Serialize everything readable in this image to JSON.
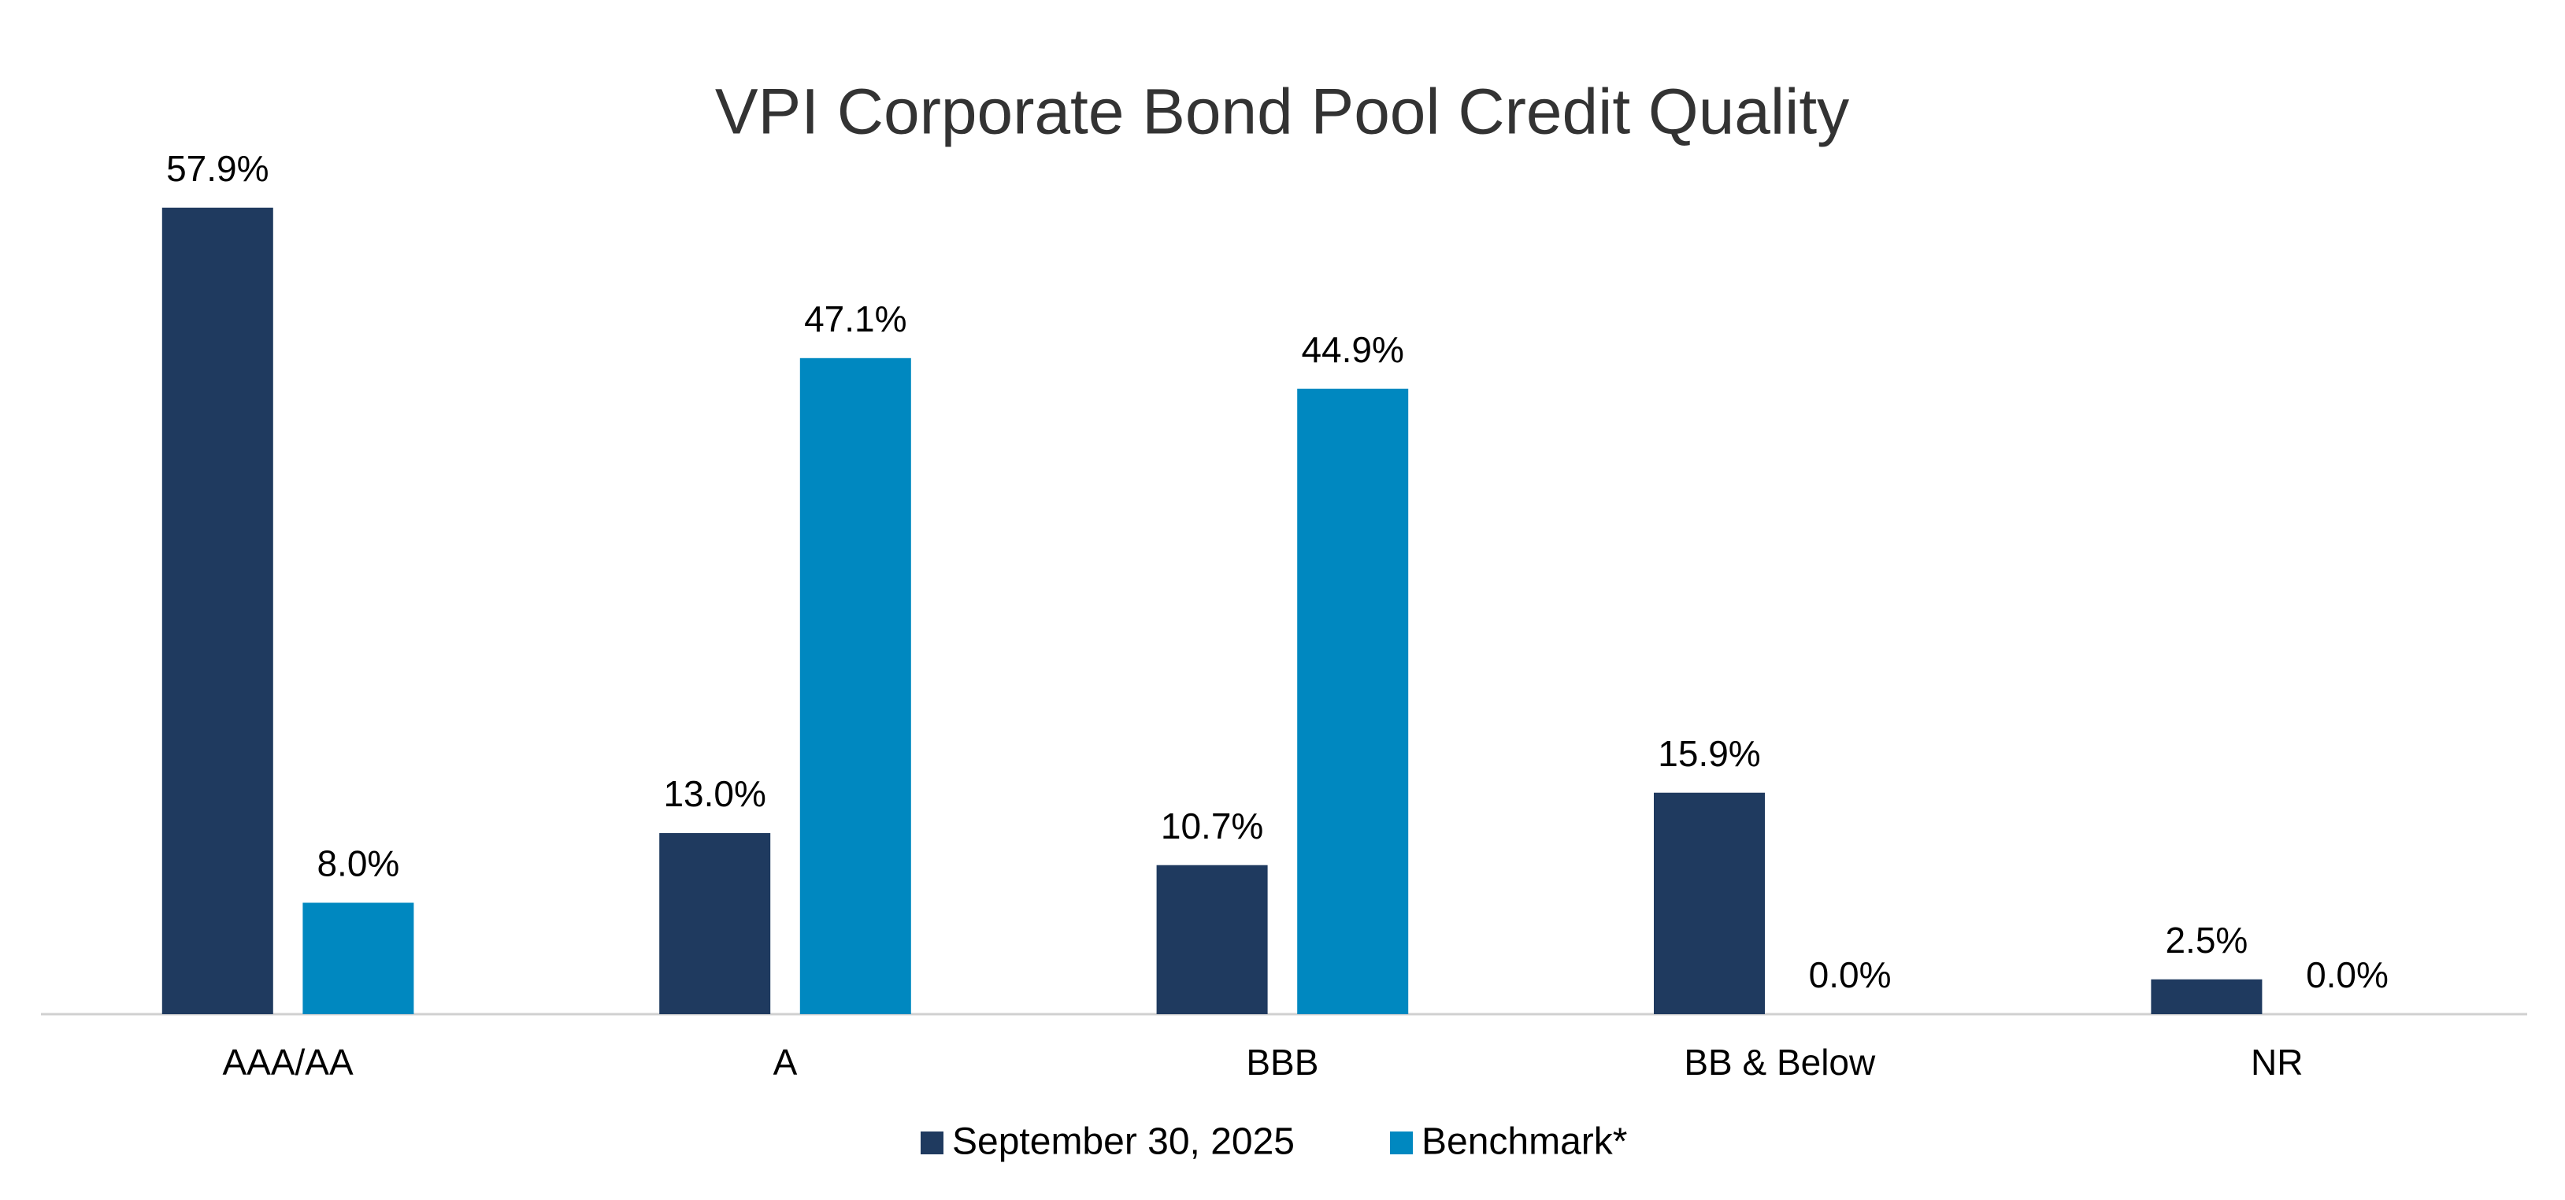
{
  "chart_data": {
    "type": "bar",
    "title": "VPI Corporate Bond Pool Credit Quality",
    "categories": [
      "AAA/AA",
      "A",
      "BBB",
      "BB & Below",
      "NR"
    ],
    "series": [
      {
        "name": "September 30, 2025",
        "color": "#1f3a5f",
        "values": [
          57.9,
          13.0,
          10.7,
          15.9,
          2.5
        ],
        "value_labels": [
          "57.9%",
          "13.0%",
          "10.7%",
          "15.9%",
          "2.5%"
        ]
      },
      {
        "name": "Benchmark*",
        "color": "#0088c0",
        "values": [
          8.0,
          47.1,
          44.9,
          0.0,
          0.0
        ],
        "value_labels": [
          "8.0%",
          "47.1%",
          "44.9%",
          "0.0%",
          "0.0%"
        ]
      }
    ],
    "grid": false,
    "legend": "bottom"
  }
}
